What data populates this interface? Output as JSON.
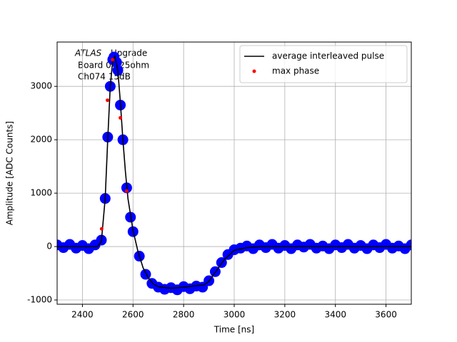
{
  "chart_data": {
    "type": "line",
    "x_label": "Time [ns]",
    "y_label": "Amplitude [ADC Counts]",
    "annotation": {
      "italic": "ATLAS",
      "lines": [
        "Upgrade",
        "Board 04 25ohm",
        "Ch074 15dB"
      ]
    },
    "xlim": [
      2300,
      3700
    ],
    "xticks": [
      2400,
      2600,
      2800,
      3000,
      3200,
      3400,
      3600
    ],
    "ylim": [
      -1080,
      3830
    ],
    "yticks": [
      -1000,
      0,
      1000,
      2000,
      3000
    ],
    "grid": true,
    "legend": "upper right",
    "series": [
      {
        "kind": "scatter",
        "color": "#0000ff",
        "x": [
          2300,
          2325,
          2350,
          2375,
          2400,
          2425,
          2450,
          2475,
          2490,
          2500,
          2510,
          2520,
          2525,
          2535,
          2540,
          2550,
          2560,
          2575,
          2590,
          2600,
          2625,
          2650,
          2675,
          2700,
          2725,
          2750,
          2775,
          2800,
          2825,
          2850,
          2875,
          2900,
          2925,
          2950,
          2975,
          3000,
          3025,
          3050,
          3075,
          3100,
          3125,
          3150,
          3175,
          3200,
          3225,
          3250,
          3275,
          3300,
          3325,
          3350,
          3375,
          3400,
          3425,
          3450,
          3475,
          3500,
          3525,
          3550,
          3575,
          3600,
          3625,
          3650,
          3675,
          3700
        ],
        "values": [
          30,
          -20,
          40,
          -30,
          20,
          -40,
          30,
          120,
          900,
          2050,
          3000,
          3500,
          3550,
          3450,
          3300,
          2650,
          2000,
          1100,
          550,
          280,
          -180,
          -520,
          -690,
          -760,
          -800,
          -770,
          -810,
          -750,
          -790,
          -740,
          -760,
          -640,
          -470,
          -300,
          -150,
          -60,
          -30,
          10,
          -40,
          30,
          -20,
          40,
          -30,
          20,
          -40,
          30,
          -10,
          40,
          -30,
          10,
          -40,
          30,
          -20,
          40,
          -30,
          20,
          -40,
          30,
          -20,
          40,
          -30,
          10,
          -40,
          30
        ]
      },
      {
        "kind": "line",
        "name": "average interleaved pulse",
        "color": "#000000",
        "x": [
          2300,
          2460,
          2475,
          2490,
          2500,
          2510,
          2520,
          2528,
          2540,
          2550,
          2560,
          2570,
          2580,
          2600,
          2620,
          2640,
          2660,
          2680,
          2700,
          2750,
          2800,
          2850,
          2880,
          2900,
          2930,
          2960,
          3000,
          3050,
          3100,
          3700
        ],
        "values": [
          0,
          0,
          100,
          900,
          2000,
          3000,
          3500,
          3560,
          3300,
          2700,
          2000,
          1400,
          900,
          300,
          -100,
          -400,
          -580,
          -700,
          -750,
          -780,
          -760,
          -730,
          -720,
          -650,
          -450,
          -250,
          -70,
          -20,
          0,
          0
        ]
      },
      {
        "kind": "scatter",
        "name": "max phase",
        "color": "#ff0000",
        "x": [
          2476,
          2499,
          2519,
          2550,
          2575
        ],
        "values": [
          333,
          2740,
          3500,
          2410,
          1040
        ]
      }
    ]
  }
}
